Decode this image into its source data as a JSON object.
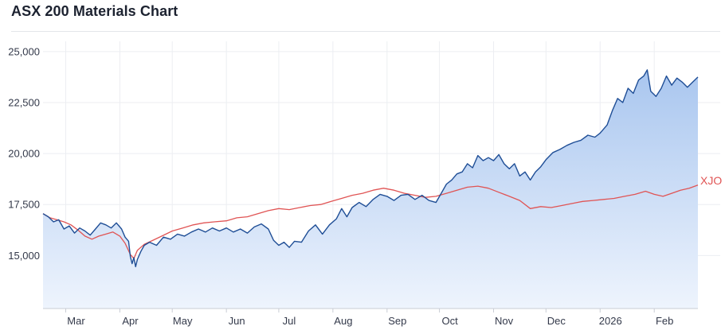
{
  "page": {
    "title": "ASX 200 Materials Chart"
  },
  "colors": {
    "materials_line": "#1f4e96",
    "materials_fill_top": "#a9c6ef",
    "materials_fill_bottom": "#eef4fd",
    "xjo_line": "#e05454",
    "grid": "#eceef2",
    "axis_text": "#33394a"
  },
  "chart_data": {
    "type": "area",
    "title": "ASX 200 Materials Chart",
    "xlabel": "",
    "ylabel": "",
    "ylim": [
      12400,
      25500
    ],
    "y_ticks": [
      15000,
      17500,
      20000,
      22500,
      25000
    ],
    "y_tick_labels": [
      "15,000",
      "17,500",
      "20,000",
      "22,500",
      "25,000"
    ],
    "x_range": [
      "2025-02-16",
      "2026-02-26"
    ],
    "x_ticks": [
      "2025-03-01",
      "2025-04-01",
      "2025-05-01",
      "2025-06-01",
      "2025-07-01",
      "2025-08-01",
      "2025-09-01",
      "2025-10-01",
      "2025-11-01",
      "2025-12-01",
      "2026-01-01",
      "2026-02-01"
    ],
    "x_tick_labels": [
      "Mar",
      "Apr",
      "May",
      "Jun",
      "Jul",
      "Aug",
      "Sep",
      "Oct",
      "Nov",
      "Dec",
      "2026",
      "Feb"
    ],
    "grid": true,
    "series": [
      {
        "label": "",
        "style": "area",
        "points": [
          [
            "2025-02-16",
            17050
          ],
          [
            "2025-02-19",
            16900
          ],
          [
            "2025-02-22",
            16650
          ],
          [
            "2025-02-25",
            16750
          ],
          [
            "2025-02-28",
            16300
          ],
          [
            "2025-03-03",
            16450
          ],
          [
            "2025-03-06",
            16100
          ],
          [
            "2025-03-09",
            16350
          ],
          [
            "2025-03-12",
            16200
          ],
          [
            "2025-03-15",
            16000
          ],
          [
            "2025-03-18",
            16300
          ],
          [
            "2025-03-21",
            16600
          ],
          [
            "2025-03-24",
            16500
          ],
          [
            "2025-03-27",
            16350
          ],
          [
            "2025-03-30",
            16600
          ],
          [
            "2025-04-02",
            16300
          ],
          [
            "2025-04-04",
            15900
          ],
          [
            "2025-04-06",
            15700
          ],
          [
            "2025-04-07",
            14950
          ],
          [
            "2025-04-08",
            14600
          ],
          [
            "2025-04-09",
            14900
          ],
          [
            "2025-04-10",
            14450
          ],
          [
            "2025-04-11",
            14800
          ],
          [
            "2025-04-13",
            15200
          ],
          [
            "2025-04-15",
            15500
          ],
          [
            "2025-04-18",
            15650
          ],
          [
            "2025-04-22",
            15500
          ],
          [
            "2025-04-26",
            15900
          ],
          [
            "2025-04-30",
            15800
          ],
          [
            "2025-05-04",
            16050
          ],
          [
            "2025-05-08",
            15950
          ],
          [
            "2025-05-12",
            16150
          ],
          [
            "2025-05-16",
            16300
          ],
          [
            "2025-05-20",
            16150
          ],
          [
            "2025-05-24",
            16350
          ],
          [
            "2025-05-28",
            16200
          ],
          [
            "2025-06-01",
            16350
          ],
          [
            "2025-06-05",
            16150
          ],
          [
            "2025-06-09",
            16300
          ],
          [
            "2025-06-13",
            16100
          ],
          [
            "2025-06-17",
            16400
          ],
          [
            "2025-06-21",
            16550
          ],
          [
            "2025-06-25",
            16300
          ],
          [
            "2025-06-28",
            15750
          ],
          [
            "2025-07-01",
            15500
          ],
          [
            "2025-07-04",
            15650
          ],
          [
            "2025-07-07",
            15400
          ],
          [
            "2025-07-10",
            15700
          ],
          [
            "2025-07-14",
            15650
          ],
          [
            "2025-07-18",
            16200
          ],
          [
            "2025-07-22",
            16500
          ],
          [
            "2025-07-26",
            16050
          ],
          [
            "2025-07-30",
            16500
          ],
          [
            "2025-08-03",
            16800
          ],
          [
            "2025-08-06",
            17300
          ],
          [
            "2025-08-09",
            16900
          ],
          [
            "2025-08-12",
            17350
          ],
          [
            "2025-08-16",
            17600
          ],
          [
            "2025-08-20",
            17400
          ],
          [
            "2025-08-24",
            17750
          ],
          [
            "2025-08-28",
            18000
          ],
          [
            "2025-09-01",
            17900
          ],
          [
            "2025-09-05",
            17700
          ],
          [
            "2025-09-09",
            17950
          ],
          [
            "2025-09-13",
            18000
          ],
          [
            "2025-09-17",
            17750
          ],
          [
            "2025-09-21",
            17950
          ],
          [
            "2025-09-25",
            17700
          ],
          [
            "2025-09-29",
            17600
          ],
          [
            "2025-10-02",
            18050
          ],
          [
            "2025-10-05",
            18500
          ],
          [
            "2025-10-08",
            18700
          ],
          [
            "2025-10-11",
            19000
          ],
          [
            "2025-10-14",
            19100
          ],
          [
            "2025-10-17",
            19500
          ],
          [
            "2025-10-20",
            19300
          ],
          [
            "2025-10-23",
            19900
          ],
          [
            "2025-10-26",
            19650
          ],
          [
            "2025-10-29",
            19800
          ],
          [
            "2025-11-01",
            19650
          ],
          [
            "2025-11-04",
            19950
          ],
          [
            "2025-11-07",
            19500
          ],
          [
            "2025-11-10",
            19250
          ],
          [
            "2025-11-13",
            19500
          ],
          [
            "2025-11-16",
            18900
          ],
          [
            "2025-11-19",
            19100
          ],
          [
            "2025-11-22",
            18700
          ],
          [
            "2025-11-25",
            19100
          ],
          [
            "2025-11-28",
            19350
          ],
          [
            "2025-12-01",
            19700
          ],
          [
            "2025-12-05",
            20050
          ],
          [
            "2025-12-09",
            20200
          ],
          [
            "2025-12-13",
            20400
          ],
          [
            "2025-12-17",
            20550
          ],
          [
            "2025-12-21",
            20650
          ],
          [
            "2025-12-25",
            20900
          ],
          [
            "2025-12-29",
            20800
          ],
          [
            "2026-01-01",
            21000
          ],
          [
            "2026-01-05",
            21400
          ],
          [
            "2026-01-08",
            22100
          ],
          [
            "2026-01-11",
            22700
          ],
          [
            "2026-01-14",
            22500
          ],
          [
            "2026-01-17",
            23200
          ],
          [
            "2026-01-20",
            22950
          ],
          [
            "2026-01-23",
            23600
          ],
          [
            "2026-01-26",
            23800
          ],
          [
            "2026-01-28",
            24100
          ],
          [
            "2026-01-30",
            23050
          ],
          [
            "2026-02-02",
            22800
          ],
          [
            "2026-02-05",
            23200
          ],
          [
            "2026-02-08",
            23800
          ],
          [
            "2026-02-11",
            23350
          ],
          [
            "2026-02-14",
            23700
          ],
          [
            "2026-02-17",
            23500
          ],
          [
            "2026-02-20",
            23250
          ],
          [
            "2026-02-23",
            23500
          ],
          [
            "2026-02-26",
            23750
          ]
        ]
      },
      {
        "label": "XJO",
        "style": "line",
        "points": [
          [
            "2025-02-16",
            17050
          ],
          [
            "2025-02-20",
            16850
          ],
          [
            "2025-02-24",
            16750
          ],
          [
            "2025-02-28",
            16650
          ],
          [
            "2025-03-04",
            16500
          ],
          [
            "2025-03-08",
            16250
          ],
          [
            "2025-03-12",
            15950
          ],
          [
            "2025-03-16",
            15800
          ],
          [
            "2025-03-20",
            15950
          ],
          [
            "2025-03-24",
            16050
          ],
          [
            "2025-03-28",
            16150
          ],
          [
            "2025-04-01",
            15950
          ],
          [
            "2025-04-04",
            15600
          ],
          [
            "2025-04-07",
            15050
          ],
          [
            "2025-04-09",
            14850
          ],
          [
            "2025-04-11",
            15250
          ],
          [
            "2025-04-15",
            15550
          ],
          [
            "2025-04-20",
            15750
          ],
          [
            "2025-04-25",
            15950
          ],
          [
            "2025-05-01",
            16200
          ],
          [
            "2025-05-07",
            16350
          ],
          [
            "2025-05-13",
            16500
          ],
          [
            "2025-05-19",
            16600
          ],
          [
            "2025-05-25",
            16650
          ],
          [
            "2025-06-01",
            16700
          ],
          [
            "2025-06-07",
            16850
          ],
          [
            "2025-06-13",
            16900
          ],
          [
            "2025-06-19",
            17050
          ],
          [
            "2025-06-25",
            17200
          ],
          [
            "2025-07-01",
            17300
          ],
          [
            "2025-07-07",
            17250
          ],
          [
            "2025-07-13",
            17350
          ],
          [
            "2025-07-19",
            17450
          ],
          [
            "2025-07-25",
            17500
          ],
          [
            "2025-07-31",
            17650
          ],
          [
            "2025-08-06",
            17800
          ],
          [
            "2025-08-12",
            17950
          ],
          [
            "2025-08-18",
            18050
          ],
          [
            "2025-08-24",
            18200
          ],
          [
            "2025-08-30",
            18300
          ],
          [
            "2025-09-05",
            18200
          ],
          [
            "2025-09-11",
            18050
          ],
          [
            "2025-09-17",
            17950
          ],
          [
            "2025-09-23",
            17850
          ],
          [
            "2025-09-29",
            17900
          ],
          [
            "2025-10-05",
            18050
          ],
          [
            "2025-10-11",
            18200
          ],
          [
            "2025-10-17",
            18350
          ],
          [
            "2025-10-23",
            18400
          ],
          [
            "2025-10-29",
            18300
          ],
          [
            "2025-11-04",
            18100
          ],
          [
            "2025-11-10",
            17900
          ],
          [
            "2025-11-16",
            17700
          ],
          [
            "2025-11-22",
            17300
          ],
          [
            "2025-11-28",
            17400
          ],
          [
            "2025-12-04",
            17350
          ],
          [
            "2025-12-10",
            17450
          ],
          [
            "2025-12-16",
            17550
          ],
          [
            "2025-12-22",
            17650
          ],
          [
            "2025-12-28",
            17700
          ],
          [
            "2026-01-03",
            17750
          ],
          [
            "2026-01-09",
            17800
          ],
          [
            "2026-01-15",
            17900
          ],
          [
            "2026-01-21",
            18000
          ],
          [
            "2026-01-27",
            18150
          ],
          [
            "2026-02-01",
            18000
          ],
          [
            "2026-02-06",
            17900
          ],
          [
            "2026-02-11",
            18050
          ],
          [
            "2026-02-16",
            18200
          ],
          [
            "2026-02-21",
            18300
          ],
          [
            "2026-02-26",
            18450
          ]
        ]
      }
    ]
  }
}
